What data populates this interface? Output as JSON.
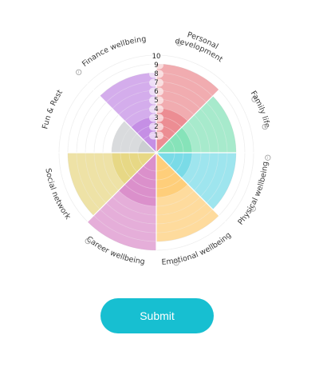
{
  "wheel": {
    "scale": [
      "1",
      "2",
      "3",
      "4",
      "5",
      "6",
      "7",
      "8",
      "9",
      "10"
    ],
    "segments": [
      {
        "id": "personal-development",
        "label": "Personal development",
        "label_lines": [
          "Personal",
          "development"
        ],
        "color": "#e8747c",
        "value": 9
      },
      {
        "id": "family-life",
        "label": "Family life",
        "label_lines": [
          "Family life"
        ],
        "color": "#6cdcaa",
        "value": 8
      },
      {
        "id": "physical-wellbeing",
        "label": "Physical wellbeing",
        "label_lines": [
          "Physical wellbeing"
        ],
        "color": "#5dd4e2",
        "value": 8
      },
      {
        "id": "emotional-wellbeing",
        "label": "Emotional wellbeing",
        "label_lines": [
          "Emotional wellbeing"
        ],
        "color": "#fdc35c",
        "value": 9
      },
      {
        "id": "career-wellbeing",
        "label": "Career wellbeing",
        "label_lines": [
          "Career wellbeing"
        ],
        "color": "#d478c0",
        "value": 10
      },
      {
        "id": "social-network",
        "label": "Social network",
        "label_lines": [
          "Social network"
        ],
        "color": "#e2cf6a",
        "value": 9
      },
      {
        "id": "fun-and-rest",
        "label": "Fun & Rest",
        "label_lines": [
          "Fun & Rest"
        ],
        "color": "#bfc3c7",
        "value": 4
      },
      {
        "id": "finance-wellbeing",
        "label": "Finance wellbeing",
        "label_lines": [
          "Finance wellbeing"
        ],
        "color": "#b877e0",
        "value": 8
      }
    ]
  },
  "submit": {
    "label": "Submit"
  }
}
